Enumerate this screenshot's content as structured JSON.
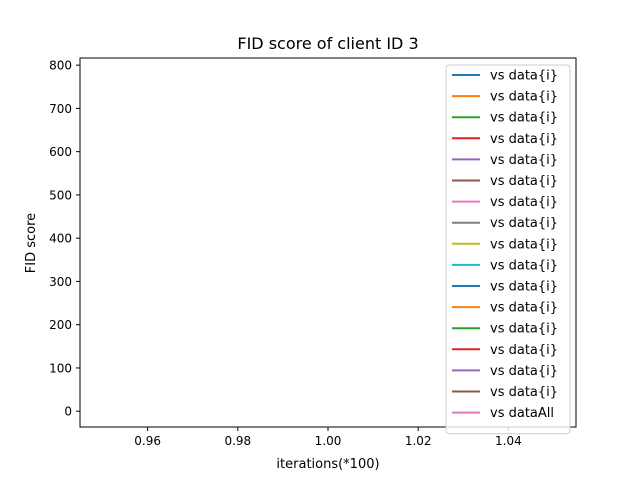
{
  "chart_data": {
    "type": "line",
    "title": "FID score of client ID 3",
    "xlabel": "iterations(*100)",
    "ylabel": "FID score",
    "xlim": [
      0.945,
      1.055
    ],
    "ylim": [
      -36.5,
      816.5
    ],
    "x_ticks": [
      0.96,
      0.98,
      1.0,
      1.02,
      1.04
    ],
    "x_tick_labels": [
      "0.96",
      "0.98",
      "1.00",
      "1.02",
      "1.04"
    ],
    "y_ticks": [
      0,
      100,
      200,
      300,
      400,
      500,
      600,
      700,
      800
    ],
    "y_tick_labels": [
      "0",
      "100",
      "200",
      "300",
      "400",
      "500",
      "600",
      "700",
      "800"
    ],
    "grid": false,
    "legend_position": "upper-right",
    "series": [
      {
        "name": "vs data{i}",
        "color": "#1f77b4",
        "x": [],
        "y": []
      },
      {
        "name": "vs data{i}",
        "color": "#ff7f0e",
        "x": [],
        "y": []
      },
      {
        "name": "vs data{i}",
        "color": "#2ca02c",
        "x": [],
        "y": []
      },
      {
        "name": "vs data{i}",
        "color": "#d62728",
        "x": [],
        "y": []
      },
      {
        "name": "vs data{i}",
        "color": "#9467bd",
        "x": [],
        "y": []
      },
      {
        "name": "vs data{i}",
        "color": "#8c564b",
        "x": [],
        "y": []
      },
      {
        "name": "vs data{i}",
        "color": "#e377c2",
        "x": [],
        "y": []
      },
      {
        "name": "vs data{i}",
        "color": "#7f7f7f",
        "x": [],
        "y": []
      },
      {
        "name": "vs data{i}",
        "color": "#bcbd22",
        "x": [],
        "y": []
      },
      {
        "name": "vs data{i}",
        "color": "#17becf",
        "x": [],
        "y": []
      },
      {
        "name": "vs data{i}",
        "color": "#1f77b4",
        "x": [],
        "y": []
      },
      {
        "name": "vs data{i}",
        "color": "#ff7f0e",
        "x": [],
        "y": []
      },
      {
        "name": "vs data{i}",
        "color": "#2ca02c",
        "x": [],
        "y": []
      },
      {
        "name": "vs data{i}",
        "color": "#d62728",
        "x": [],
        "y": []
      },
      {
        "name": "vs data{i}",
        "color": "#9467bd",
        "x": [],
        "y": []
      },
      {
        "name": "vs data{i}",
        "color": "#8c564b",
        "x": [],
        "y": []
      },
      {
        "name": "vs dataAll",
        "color": "#e377c2",
        "x": [],
        "y": []
      }
    ]
  }
}
